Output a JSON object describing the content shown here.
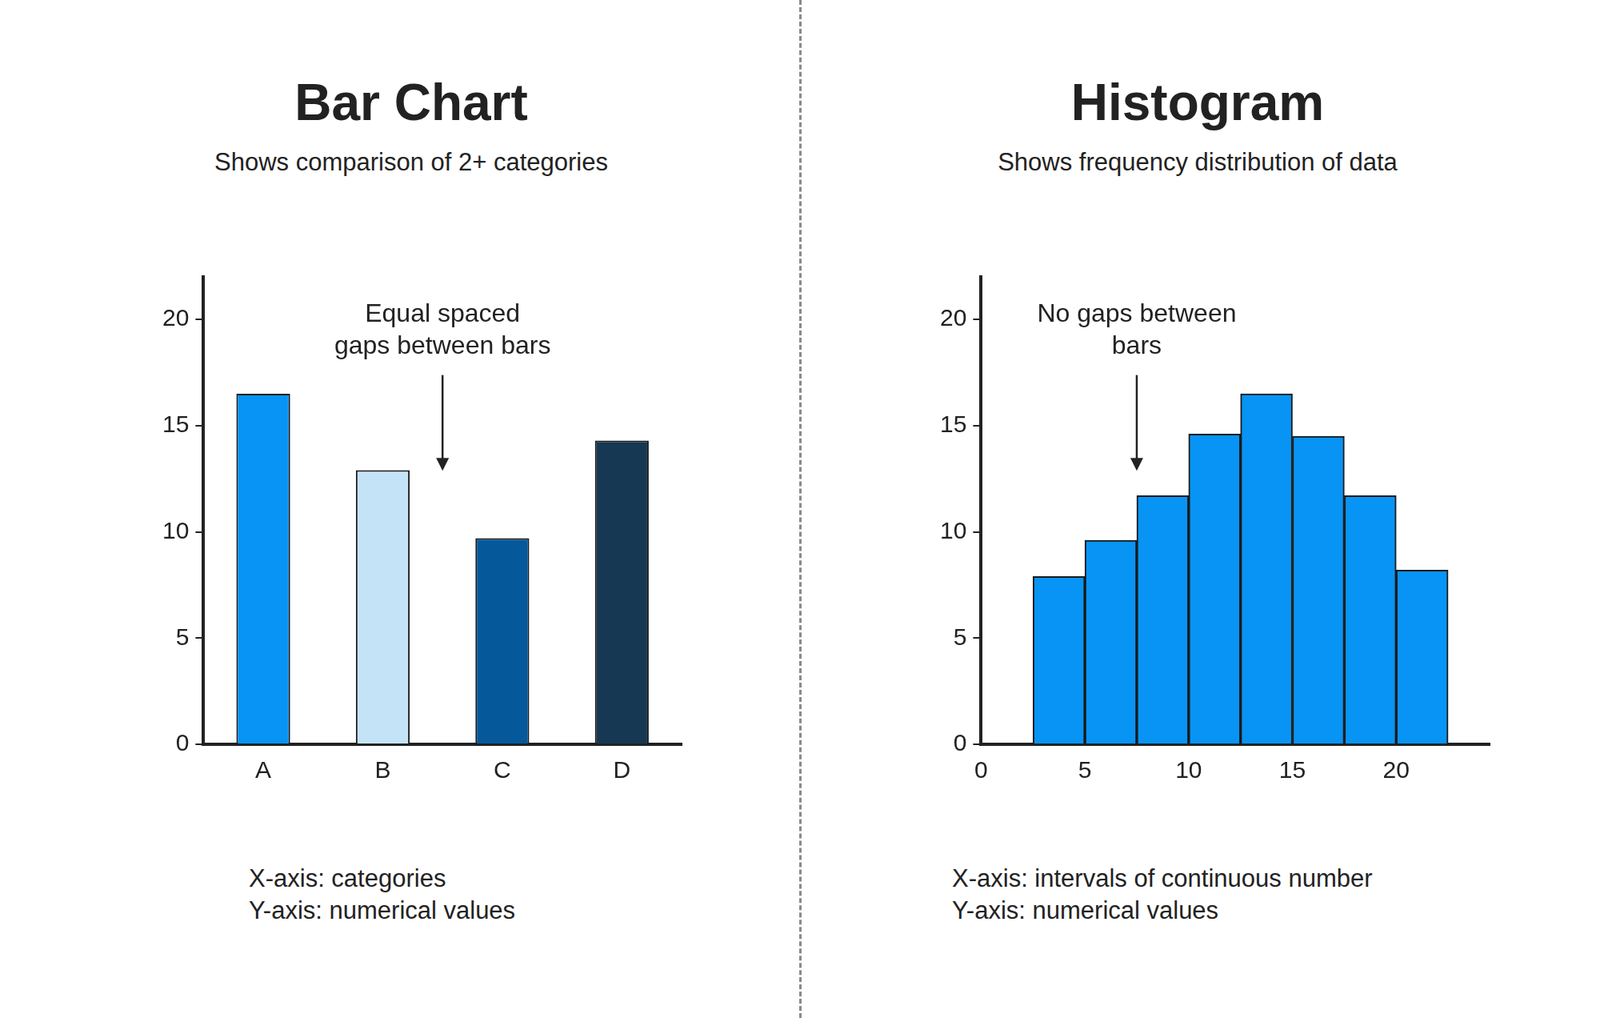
{
  "chart_data": [
    {
      "type": "bar",
      "title": "Bar Chart",
      "subtitle": "Shows comparison of 2+ categories",
      "categories": [
        "A",
        "B",
        "C",
        "D"
      ],
      "values": [
        16.5,
        12.9,
        9.7,
        14.3
      ],
      "colors": [
        "#0894f4",
        "#c5e3f7",
        "#05599b",
        "#163853"
      ],
      "ylim": [
        0,
        22
      ],
      "yticks": [
        0,
        5,
        10,
        15,
        20
      ],
      "grid": false,
      "annotations": [
        "Equal spaced\ngaps between bars"
      ],
      "footnotes": [
        "X-axis: categories",
        "Y-axis: numerical values"
      ]
    },
    {
      "type": "histogram",
      "title": "Histogram",
      "subtitle": "Shows frequency distribution of data",
      "bins": [
        2.5,
        5,
        7.5,
        10,
        12.5,
        15,
        17.5,
        20,
        22.5
      ],
      "values": [
        7.9,
        9.6,
        11.7,
        14.6,
        16.5,
        14.5,
        11.7,
        8.2
      ],
      "color": "#0894f4",
      "xlim": [
        0,
        24.5
      ],
      "xticks": [
        0,
        5,
        10,
        15,
        20
      ],
      "ylim": [
        0,
        22
      ],
      "yticks": [
        0,
        5,
        10,
        15,
        20
      ],
      "grid": false,
      "annotations": [
        "No gaps between\nbars"
      ],
      "footnotes": [
        "X-axis: intervals of continuous number",
        "Y-axis: numerical values"
      ]
    }
  ]
}
